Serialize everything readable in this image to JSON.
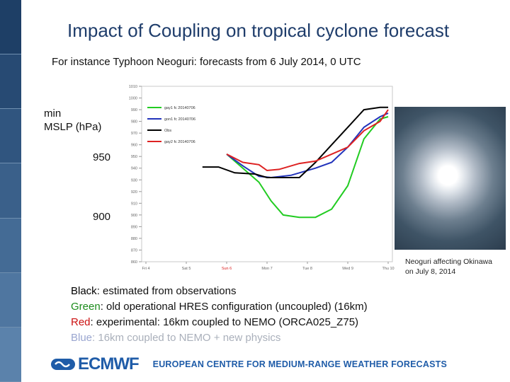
{
  "slide": {
    "title": "Impact of Coupling on tropical cyclone forecast",
    "subtitle": "For instance Typhoon Neoguri: forecasts from 6 July 2014, 0 UTC",
    "ylabel_line1": "min",
    "ylabel_line2": "MSLP  (hPa)",
    "tick_950": "950",
    "tick_900": "900"
  },
  "photo_caption": {
    "line1": "Neoguri affecting Okinawa",
    "line2": "on July 8, 2014"
  },
  "legend": [
    {
      "key": "Black",
      "text": ": estimated from observations",
      "color": "#000000"
    },
    {
      "key": "Green",
      "text": ": old operational HRES configuration (uncoupled) (16km)",
      "color": "#1c8c1c"
    },
    {
      "key": "Red",
      "text": ": experimental: 16km coupled to NEMO (ORCA025_Z75)",
      "color": "#cc1111"
    },
    {
      "key": "Blue",
      "text": ": 16km coupled to NEMO + new physics",
      "color": "#1a2ea8"
    }
  ],
  "footer": {
    "logo": "ECMWF",
    "tagline": "EUROPEAN CENTRE FOR MEDIUM-RANGE WEATHER FORECASTS"
  },
  "colors": {
    "brand": "#1f5ca8",
    "title": "#1f3d6b"
  },
  "chart_data": {
    "type": "line",
    "ylim": [
      860,
      1010
    ],
    "yticks": [
      1010,
      1000,
      990,
      980,
      970,
      960,
      950,
      940,
      930,
      920,
      910,
      900,
      890,
      880,
      870,
      860
    ],
    "xticks": [
      "Fri 4",
      "Sat 5",
      "Sun 6",
      "Mon 7",
      "Tue 8",
      "Wed 9",
      "Thu 10"
    ],
    "xlim": [
      0,
      6
    ],
    "series": [
      {
        "name": "gay1 fc 20140706",
        "color": "#22cc22",
        "x": [
          2.0,
          2.4,
          2.8,
          3.1,
          3.4,
          3.8,
          4.2,
          4.6,
          5.0,
          5.4,
          5.8,
          6.0
        ],
        "y": [
          952,
          940,
          928,
          912,
          900,
          898,
          898,
          905,
          925,
          965,
          982,
          984
        ]
      },
      {
        "name": "gon1 fc 20140706",
        "color": "#2233bb",
        "x": [
          2.0,
          2.4,
          2.8,
          3.1,
          3.6,
          4.2,
          4.6,
          5.0,
          5.4,
          5.8,
          6.0
        ],
        "y": [
          952,
          942,
          933,
          932,
          934,
          940,
          945,
          958,
          975,
          984,
          987
        ]
      },
      {
        "name": "Obs",
        "color": "#000000",
        "x": [
          1.4,
          1.8,
          2.2,
          2.7,
          3.0,
          3.4,
          3.8,
          4.2,
          4.6,
          5.0,
          5.4,
          5.8,
          6.0
        ],
        "y": [
          941,
          941,
          936,
          935,
          932,
          932,
          932,
          945,
          960,
          975,
          990,
          992,
          992
        ]
      },
      {
        "name": "gay2 fc 20140706",
        "color": "#dd2222",
        "x": [
          2.0,
          2.4,
          2.8,
          3.0,
          3.3,
          3.8,
          4.2,
          4.6,
          5.0,
          5.4,
          5.8,
          6.0
        ],
        "y": [
          952,
          945,
          943,
          938,
          939,
          944,
          946,
          952,
          958,
          972,
          980,
          990
        ]
      }
    ]
  }
}
